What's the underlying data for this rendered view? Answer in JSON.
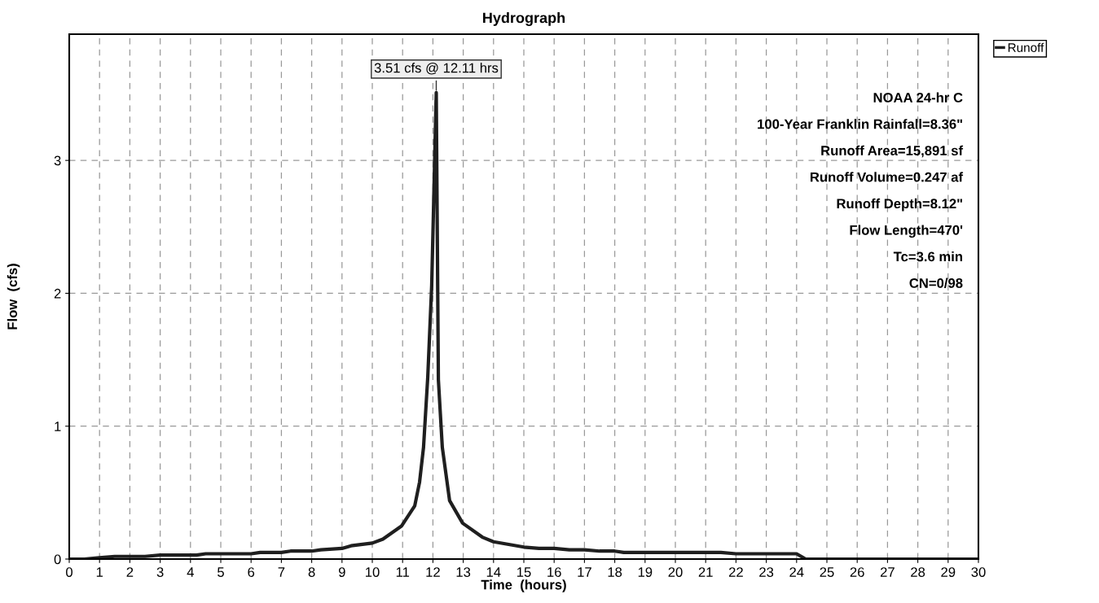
{
  "chart_data": {
    "type": "line",
    "title": "Hydrograph",
    "xlabel": "Time  (hours)",
    "ylabel": "Flow  (cfs)",
    "xlim": [
      0,
      30
    ],
    "xticks": [
      0,
      1,
      2,
      3,
      4,
      5,
      6,
      7,
      8,
      9,
      10,
      11,
      12,
      13,
      14,
      15,
      16,
      17,
      18,
      19,
      20,
      21,
      22,
      23,
      24,
      25,
      26,
      27,
      28,
      29,
      30
    ],
    "ylim": [
      0,
      3.95
    ],
    "yticks": [
      0,
      1,
      2,
      3
    ],
    "grid": true,
    "legend": "top right",
    "line_style": "solid",
    "marker": "none",
    "series": [
      {
        "name": "Runoff",
        "color": "#1f1f1f",
        "x": [
          0,
          0.5,
          1,
          1.5,
          2.5,
          3,
          4.2,
          4.5,
          6,
          6.3,
          7,
          7.3,
          8,
          8.3,
          9,
          9.3,
          10,
          10.35,
          10.97,
          11.4,
          11.56,
          11.69,
          11.83,
          11.96,
          12.11,
          12.18,
          12.31,
          12.55,
          12.98,
          13.63,
          14,
          15,
          15.5,
          16,
          16.5,
          17,
          17.5,
          18,
          18.3,
          21.5,
          22,
          24,
          24.3,
          30
        ],
        "values": [
          0,
          0,
          0.01,
          0.02,
          0.02,
          0.03,
          0.03,
          0.04,
          0.04,
          0.05,
          0.05,
          0.06,
          0.06,
          0.07,
          0.08,
          0.1,
          0.12,
          0.15,
          0.25,
          0.4,
          0.58,
          0.84,
          1.37,
          2.06,
          3.51,
          1.35,
          0.84,
          0.44,
          0.27,
          0.165,
          0.13,
          0.09,
          0.08,
          0.08,
          0.07,
          0.07,
          0.06,
          0.06,
          0.05,
          0.05,
          0.04,
          0.04,
          0,
          0
        ]
      }
    ],
    "annotations": [
      {
        "text": "3.51 cfs @ 12.11 hrs",
        "x": 12.11,
        "y": 3.51
      },
      "NOAA 24-hr C",
      "100-Year Franklin Rainfall=8.36\"",
      "Runoff Area=15,891 sf",
      "Runoff Volume=0.247 af",
      "Runoff Depth=8.12\"",
      "Flow Length=470'",
      "Tc=3.6 min",
      "CN=0/98"
    ]
  }
}
